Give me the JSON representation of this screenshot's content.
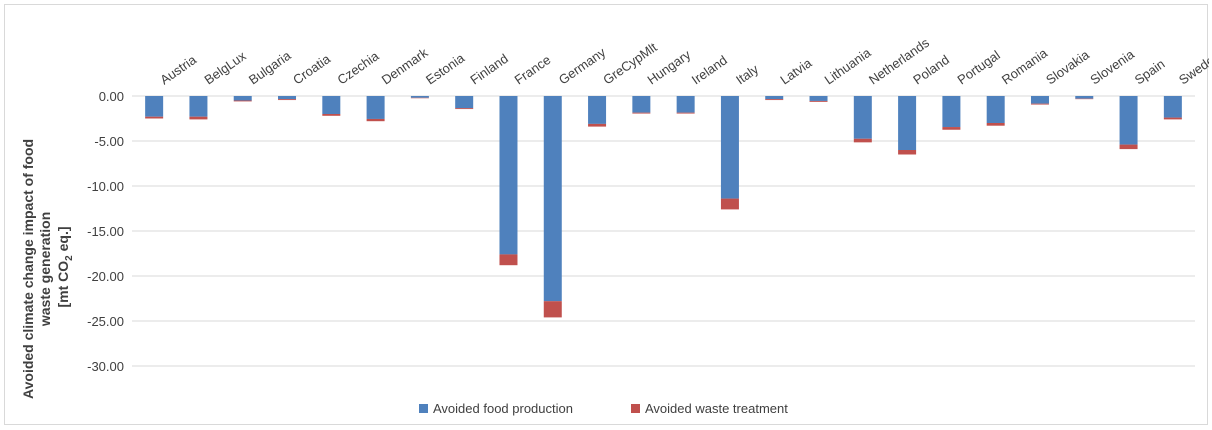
{
  "chart_data": {
    "type": "bar",
    "stacked": true,
    "categories": [
      "Austria",
      "BelgLux",
      "Bulgaria",
      "Croatia",
      "Czechia",
      "Denmark",
      "Estonia",
      "Finland",
      "France",
      "Germany",
      "GreCypMlt",
      "Hungary",
      "Ireland",
      "Italy",
      "Latvia",
      "Lithuania",
      "Netherlands",
      "Poland",
      "Portugal",
      "Romania",
      "Slovakia",
      "Slovenia",
      "Spain",
      "Sweden"
    ],
    "series": [
      {
        "name": "Avoided food production",
        "color": "#4f81bd",
        "values": [
          -2.3,
          -2.3,
          -0.5,
          -0.35,
          -2.0,
          -2.55,
          -0.2,
          -1.35,
          -17.6,
          -22.8,
          -3.1,
          -1.85,
          -1.85,
          -11.4,
          -0.35,
          -0.55,
          -4.75,
          -6.0,
          -3.45,
          -3.0,
          -0.85,
          -0.3,
          -5.4,
          -2.4
        ]
      },
      {
        "name": "Avoided waste treatment",
        "color": "#c0504d",
        "values": [
          -0.2,
          -0.3,
          -0.1,
          -0.1,
          -0.2,
          -0.25,
          -0.05,
          -0.1,
          -1.2,
          -1.8,
          -0.3,
          -0.1,
          -0.1,
          -1.2,
          -0.1,
          -0.1,
          -0.4,
          -0.5,
          -0.3,
          -0.3,
          -0.1,
          -0.05,
          -0.5,
          -0.2
        ]
      }
    ],
    "yticks": [
      "0.00",
      "-5.00",
      "-10.00",
      "-15.00",
      "-20.00",
      "-25.00",
      "-30.00"
    ],
    "ylim": [
      -30,
      0
    ],
    "ylabel_line1": "Avoided climate change impact of food",
    "ylabel_line2": "waste generation",
    "ylabel_line3_prefix": "[mt CO",
    "ylabel_line3_sub": "2",
    "ylabel_line3_suffix": " eq.]",
    "grid": true,
    "legend_position": "bottom"
  }
}
